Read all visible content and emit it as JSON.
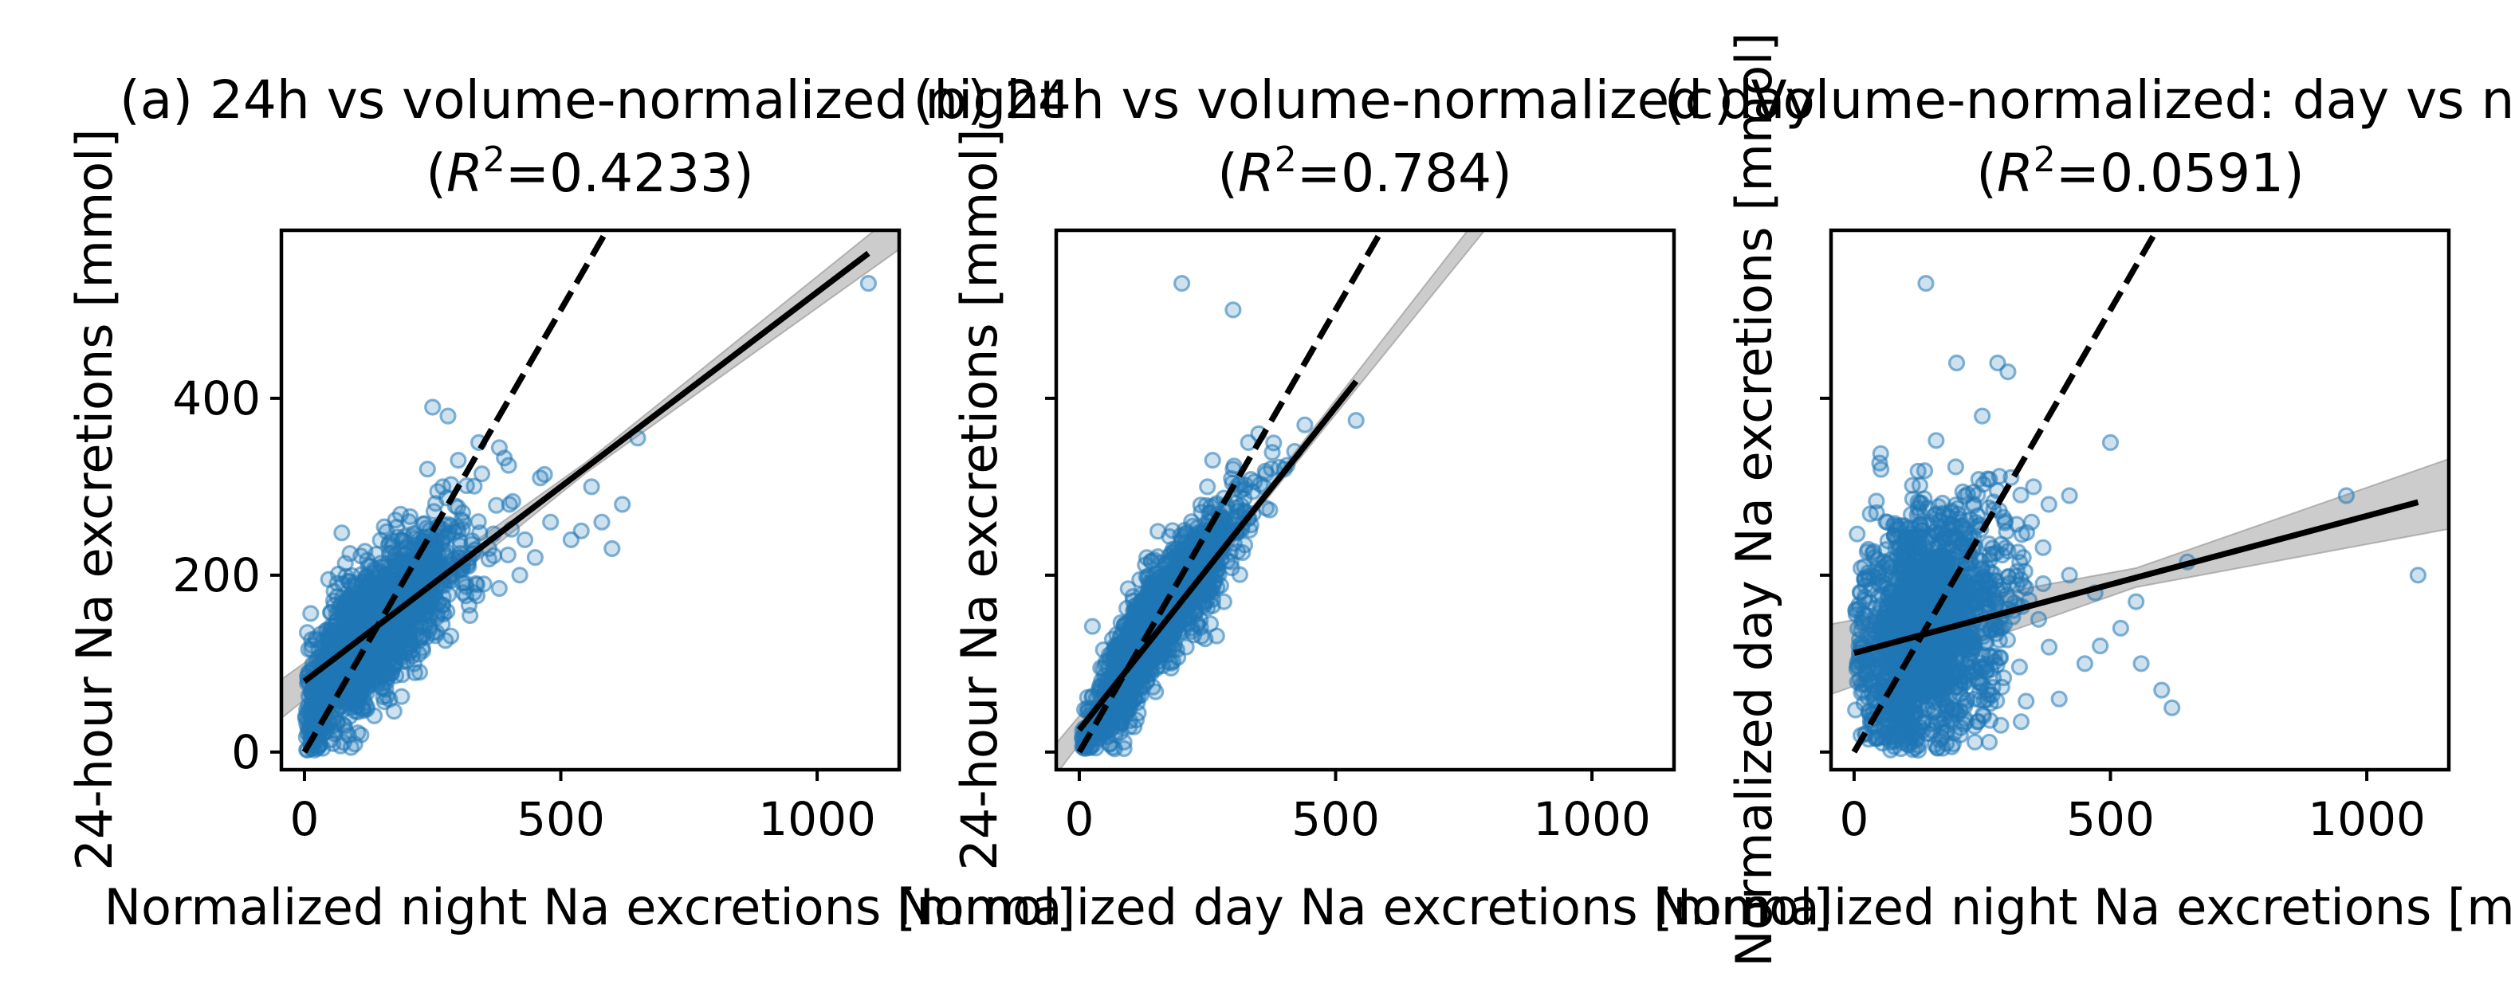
{
  "figure": {
    "panels_count": 3
  },
  "chart_data": [
    {
      "type": "scatter",
      "panel_id": "a",
      "title": "(a) 24h vs volume-normalized night",
      "title_line2": "R²=0.4233",
      "r2": 0.4233,
      "xlabel": "Normalized night Na excretions [mmol]",
      "ylabel": "24-hour Na excretions [mmol]",
      "xlim": [
        -45,
        1160
      ],
      "ylim": [
        -20,
        590
      ],
      "xticks": [
        0,
        500,
        1000
      ],
      "yticks": [
        0,
        200,
        400
      ],
      "show_yticklabels": true,
      "point_color": "#1f77b4",
      "cloud": {
        "cx": 130,
        "cy": 140,
        "sx": 75,
        "sy": 55,
        "corr": 0.72,
        "n": 1700
      },
      "outliers": [
        [
          1100,
          530
        ],
        [
          620,
          280
        ],
        [
          580,
          260
        ],
        [
          650,
          355
        ],
        [
          600,
          230
        ],
        [
          560,
          300
        ],
        [
          540,
          250
        ],
        [
          480,
          260
        ],
        [
          460,
          310
        ],
        [
          430,
          240
        ],
        [
          420,
          200
        ],
        [
          380,
          185
        ],
        [
          350,
          190
        ],
        [
          340,
          350
        ],
        [
          320,
          210
        ],
        [
          300,
          330
        ],
        [
          280,
          380
        ],
        [
          250,
          390
        ],
        [
          240,
          320
        ],
        [
          270,
          300
        ],
        [
          310,
          260
        ],
        [
          360,
          230
        ],
        [
          400,
          280
        ],
        [
          520,
          240
        ],
        [
          450,
          220
        ]
      ],
      "regression": {
        "slope": 0.44,
        "intercept": 80,
        "x_range": [
          0,
          1100
        ],
        "ci_halfwidth": 10
      },
      "identity_line": {
        "x_range": [
          0,
          600
        ]
      }
    },
    {
      "type": "scatter",
      "panel_id": "b",
      "title": "(b) 24h vs volume-normalized day",
      "title_line2": "R²=0.784",
      "r2": 0.784,
      "xlabel": "Normalized day Na excretions [mmol]",
      "ylabel": "24-hour Na excretions [mmol]",
      "xlim": [
        -45,
        1160
      ],
      "ylim": [
        -20,
        590
      ],
      "xticks": [
        0,
        500,
        1000
      ],
      "yticks": [
        0,
        200,
        400
      ],
      "show_yticklabels": false,
      "point_color": "#1f77b4",
      "cloud": {
        "cx": 140,
        "cy": 140,
        "sx": 70,
        "sy": 65,
        "corr": 0.9,
        "n": 1700
      },
      "outliers": [
        [
          200,
          530
        ],
        [
          300,
          500
        ],
        [
          540,
          375
        ],
        [
          440,
          370
        ],
        [
          350,
          360
        ],
        [
          330,
          350
        ],
        [
          400,
          320
        ],
        [
          300,
          320
        ],
        [
          360,
          300
        ],
        [
          250,
          300
        ],
        [
          260,
          330
        ],
        [
          420,
          340
        ]
      ],
      "regression": {
        "slope": 0.73,
        "intercept": 25,
        "x_range": [
          0,
          540
        ],
        "ci_halfwidth": 8
      },
      "identity_line": {
        "x_range": [
          0,
          600
        ]
      }
    },
    {
      "type": "scatter",
      "panel_id": "c",
      "title": "(c) Volume-normalized: day vs night",
      "title_line2": "R²=0.0591",
      "r2": 0.0591,
      "xlabel": "Normalized night Na excretions [mmol]",
      "ylabel": "Normalized day Na excretions [mmol]",
      "xlim": [
        -45,
        1160
      ],
      "ylim": [
        -20,
        590
      ],
      "xticks": [
        0,
        500,
        1000
      ],
      "yticks": [
        0,
        200,
        400
      ],
      "show_yticklabels": false,
      "point_color": "#1f77b4",
      "cloud": {
        "cx": 130,
        "cy": 140,
        "sx": 70,
        "sy": 70,
        "corr": 0.2,
        "n": 1700
      },
      "outliers": [
        [
          1100,
          200
        ],
        [
          960,
          290
        ],
        [
          650,
          215
        ],
        [
          620,
          50
        ],
        [
          600,
          70
        ],
        [
          550,
          170
        ],
        [
          520,
          140
        ],
        [
          500,
          350
        ],
        [
          480,
          120
        ],
        [
          450,
          100
        ],
        [
          420,
          200
        ],
        [
          400,
          60
        ],
        [
          380,
          280
        ],
        [
          350,
          300
        ],
        [
          330,
          220
        ],
        [
          300,
          430
        ],
        [
          280,
          440
        ],
        [
          200,
          440
        ],
        [
          140,
          530
        ],
        [
          250,
          380
        ],
        [
          420,
          290
        ],
        [
          360,
          150
        ],
        [
          310,
          160
        ],
        [
          560,
          100
        ],
        [
          470,
          180
        ]
      ],
      "regression": {
        "slope": 0.155,
        "intercept": 112,
        "x_range": [
          0,
          1100
        ],
        "ci_halfwidth": 18
      },
      "identity_line": {
        "x_range": [
          0,
          600
        ]
      }
    }
  ]
}
